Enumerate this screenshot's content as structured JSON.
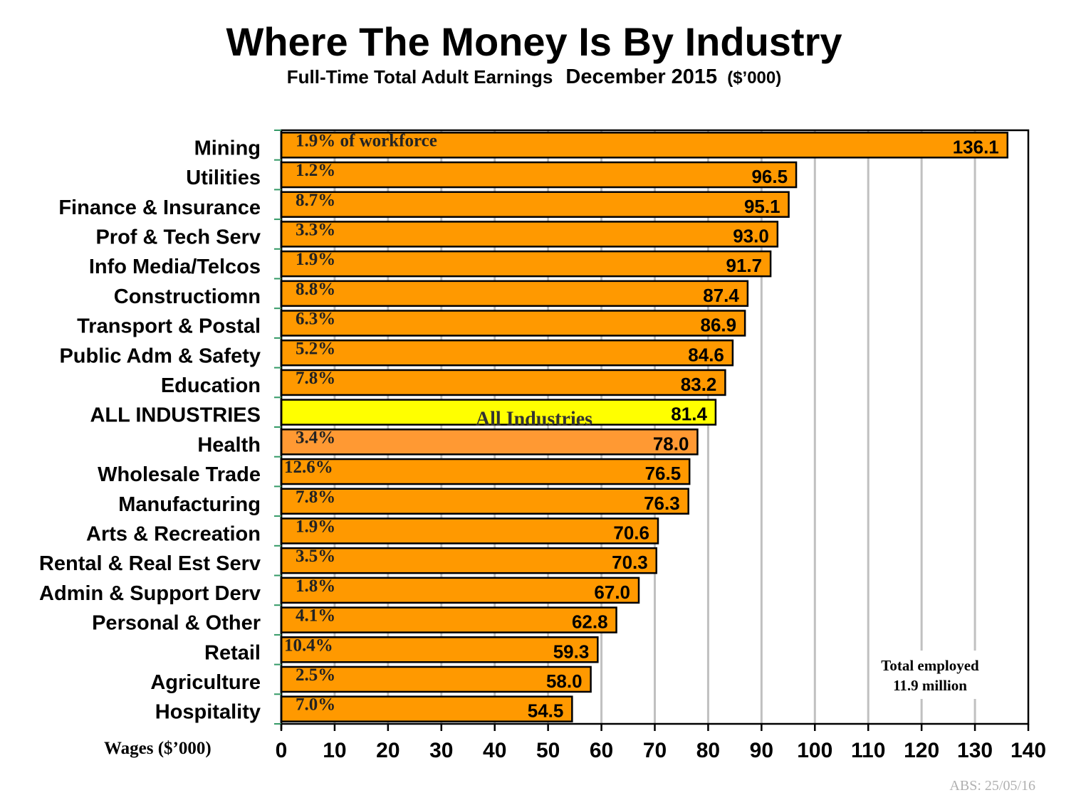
{
  "header": {
    "title": "Where The Money Is By Industry",
    "subtitle_main": "Full-Time Total Adult Earnings",
    "subtitle_date": "December 2015",
    "subtitle_unit": "($’000)"
  },
  "chart_data": {
    "type": "bar",
    "orientation": "horizontal",
    "xlabel": "Wages ($’000)",
    "xlim": [
      0,
      140
    ],
    "xticks": [
      "0",
      "10",
      "20",
      "30",
      "40",
      "50",
      "60",
      "70",
      "80",
      "90",
      "100",
      "110",
      "120",
      "130",
      "140"
    ],
    "grid": true,
    "categories": [
      "Mining",
      "Utilities",
      "Finance & Insurance",
      "Prof & Tech Serv",
      "Info Media/Telcos",
      "Constructiomn",
      "Transport & Postal",
      "Public Adm & Safety",
      "Education",
      "ALL INDUSTRIES",
      "Health",
      "Wholesale Trade",
      "Manufacturing",
      "Arts & Recreation",
      "Rental & Real Est Serv",
      "Admin & Support Derv",
      "Personal & Other",
      "Retail",
      "Agriculture",
      "Hospitality"
    ],
    "values": [
      136.1,
      96.5,
      95.1,
      93.0,
      91.7,
      87.4,
      86.9,
      84.6,
      83.2,
      81.4,
      78.0,
      76.5,
      76.3,
      70.6,
      70.3,
      67.0,
      62.8,
      59.3,
      58.0,
      54.5
    ],
    "value_labels": [
      "136.1",
      "96.5",
      "95.1",
      "93.0",
      "91.7",
      "87.4",
      "86.9",
      "84.6",
      "83.2",
      "81.4",
      "78.0",
      "76.5",
      "76.3",
      "70.6",
      "70.3",
      "67.0",
      "62.8",
      "59.3",
      "58.0",
      "54.5"
    ],
    "workforce_share": [
      "1.9% of workforce",
      "1.2%",
      "8.7%",
      "3.3%",
      "1.9%",
      "8.8%",
      "6.3%",
      "5.2%",
      "7.8%",
      "All Industries",
      "3.4%",
      "12.6%",
      "7.8%",
      "1.9%",
      "3.5%",
      "1.8%",
      "4.1%",
      "10.4%",
      "2.5%",
      "7.0%"
    ],
    "bar_colors": [
      "#FF9900",
      "#FF9900",
      "#FF9900",
      "#FF9900",
      "#FF9900",
      "#FF9900",
      "#FF9900",
      "#FF9900",
      "#FF9900",
      "#FFFF00",
      "#FF9933",
      "#FF9900",
      "#FF9900",
      "#FF9900",
      "#FF9900",
      "#FF9900",
      "#FF9900",
      "#FF9900",
      "#FF9900",
      "#FF9900"
    ],
    "annotation": [
      "Total employed",
      "11.9 million"
    ],
    "source": "ABS: 25/05/16"
  }
}
